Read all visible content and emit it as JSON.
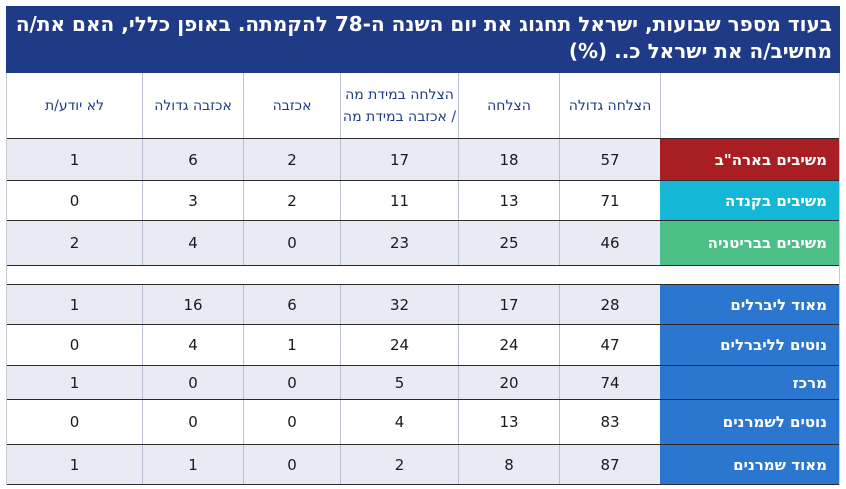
{
  "title": "בעוד מספר שבועות, ישראל תחגוג את יום השנה ה-78 להקמתה. באופן כללי, האם את/ה מחשיב/ה את ישראל כ.. (%)",
  "colors": {
    "title_bg": "#1f3b87",
    "usa": "#a81e22",
    "canada": "#14b7d6",
    "uk": "#4cbf86",
    "politics": "#2b76cf",
    "row_alt": "#e8ebf4"
  },
  "columns": [
    "הצלחה גדולה",
    "הצלחה",
    "הצלחה במידת מה / אכזבה במידת מה",
    "אכזבה",
    "אכזבה גדולה",
    "לא יודע/ת"
  ],
  "group1": [
    {
      "label": "משיבים בארה\"ב",
      "values": [
        "57",
        "18",
        "17",
        "2",
        "6",
        "1"
      ]
    },
    {
      "label": "משיבים בקנדה",
      "values": [
        "71",
        "13",
        "11",
        "2",
        "3",
        "0"
      ]
    },
    {
      "label": "משיבים בבריטניה",
      "values": [
        "46",
        "25",
        "23",
        "0",
        "4",
        "2"
      ]
    }
  ],
  "group2": [
    {
      "label": "מאוד ליברלים",
      "values": [
        "28",
        "17",
        "32",
        "6",
        "16",
        "1"
      ]
    },
    {
      "label": "נוטים לליברלים",
      "values": [
        "47",
        "24",
        "24",
        "1",
        "4",
        "0"
      ]
    },
    {
      "label": "מרכז",
      "values": [
        "74",
        "20",
        "5",
        "0",
        "0",
        "1"
      ]
    },
    {
      "label": "נוטים לשמרנים",
      "values": [
        "83",
        "13",
        "4",
        "0",
        "0",
        "0"
      ]
    },
    {
      "label": "מאוד שמרנים",
      "values": [
        "87",
        "8",
        "2",
        "0",
        "1",
        "1"
      ]
    }
  ]
}
